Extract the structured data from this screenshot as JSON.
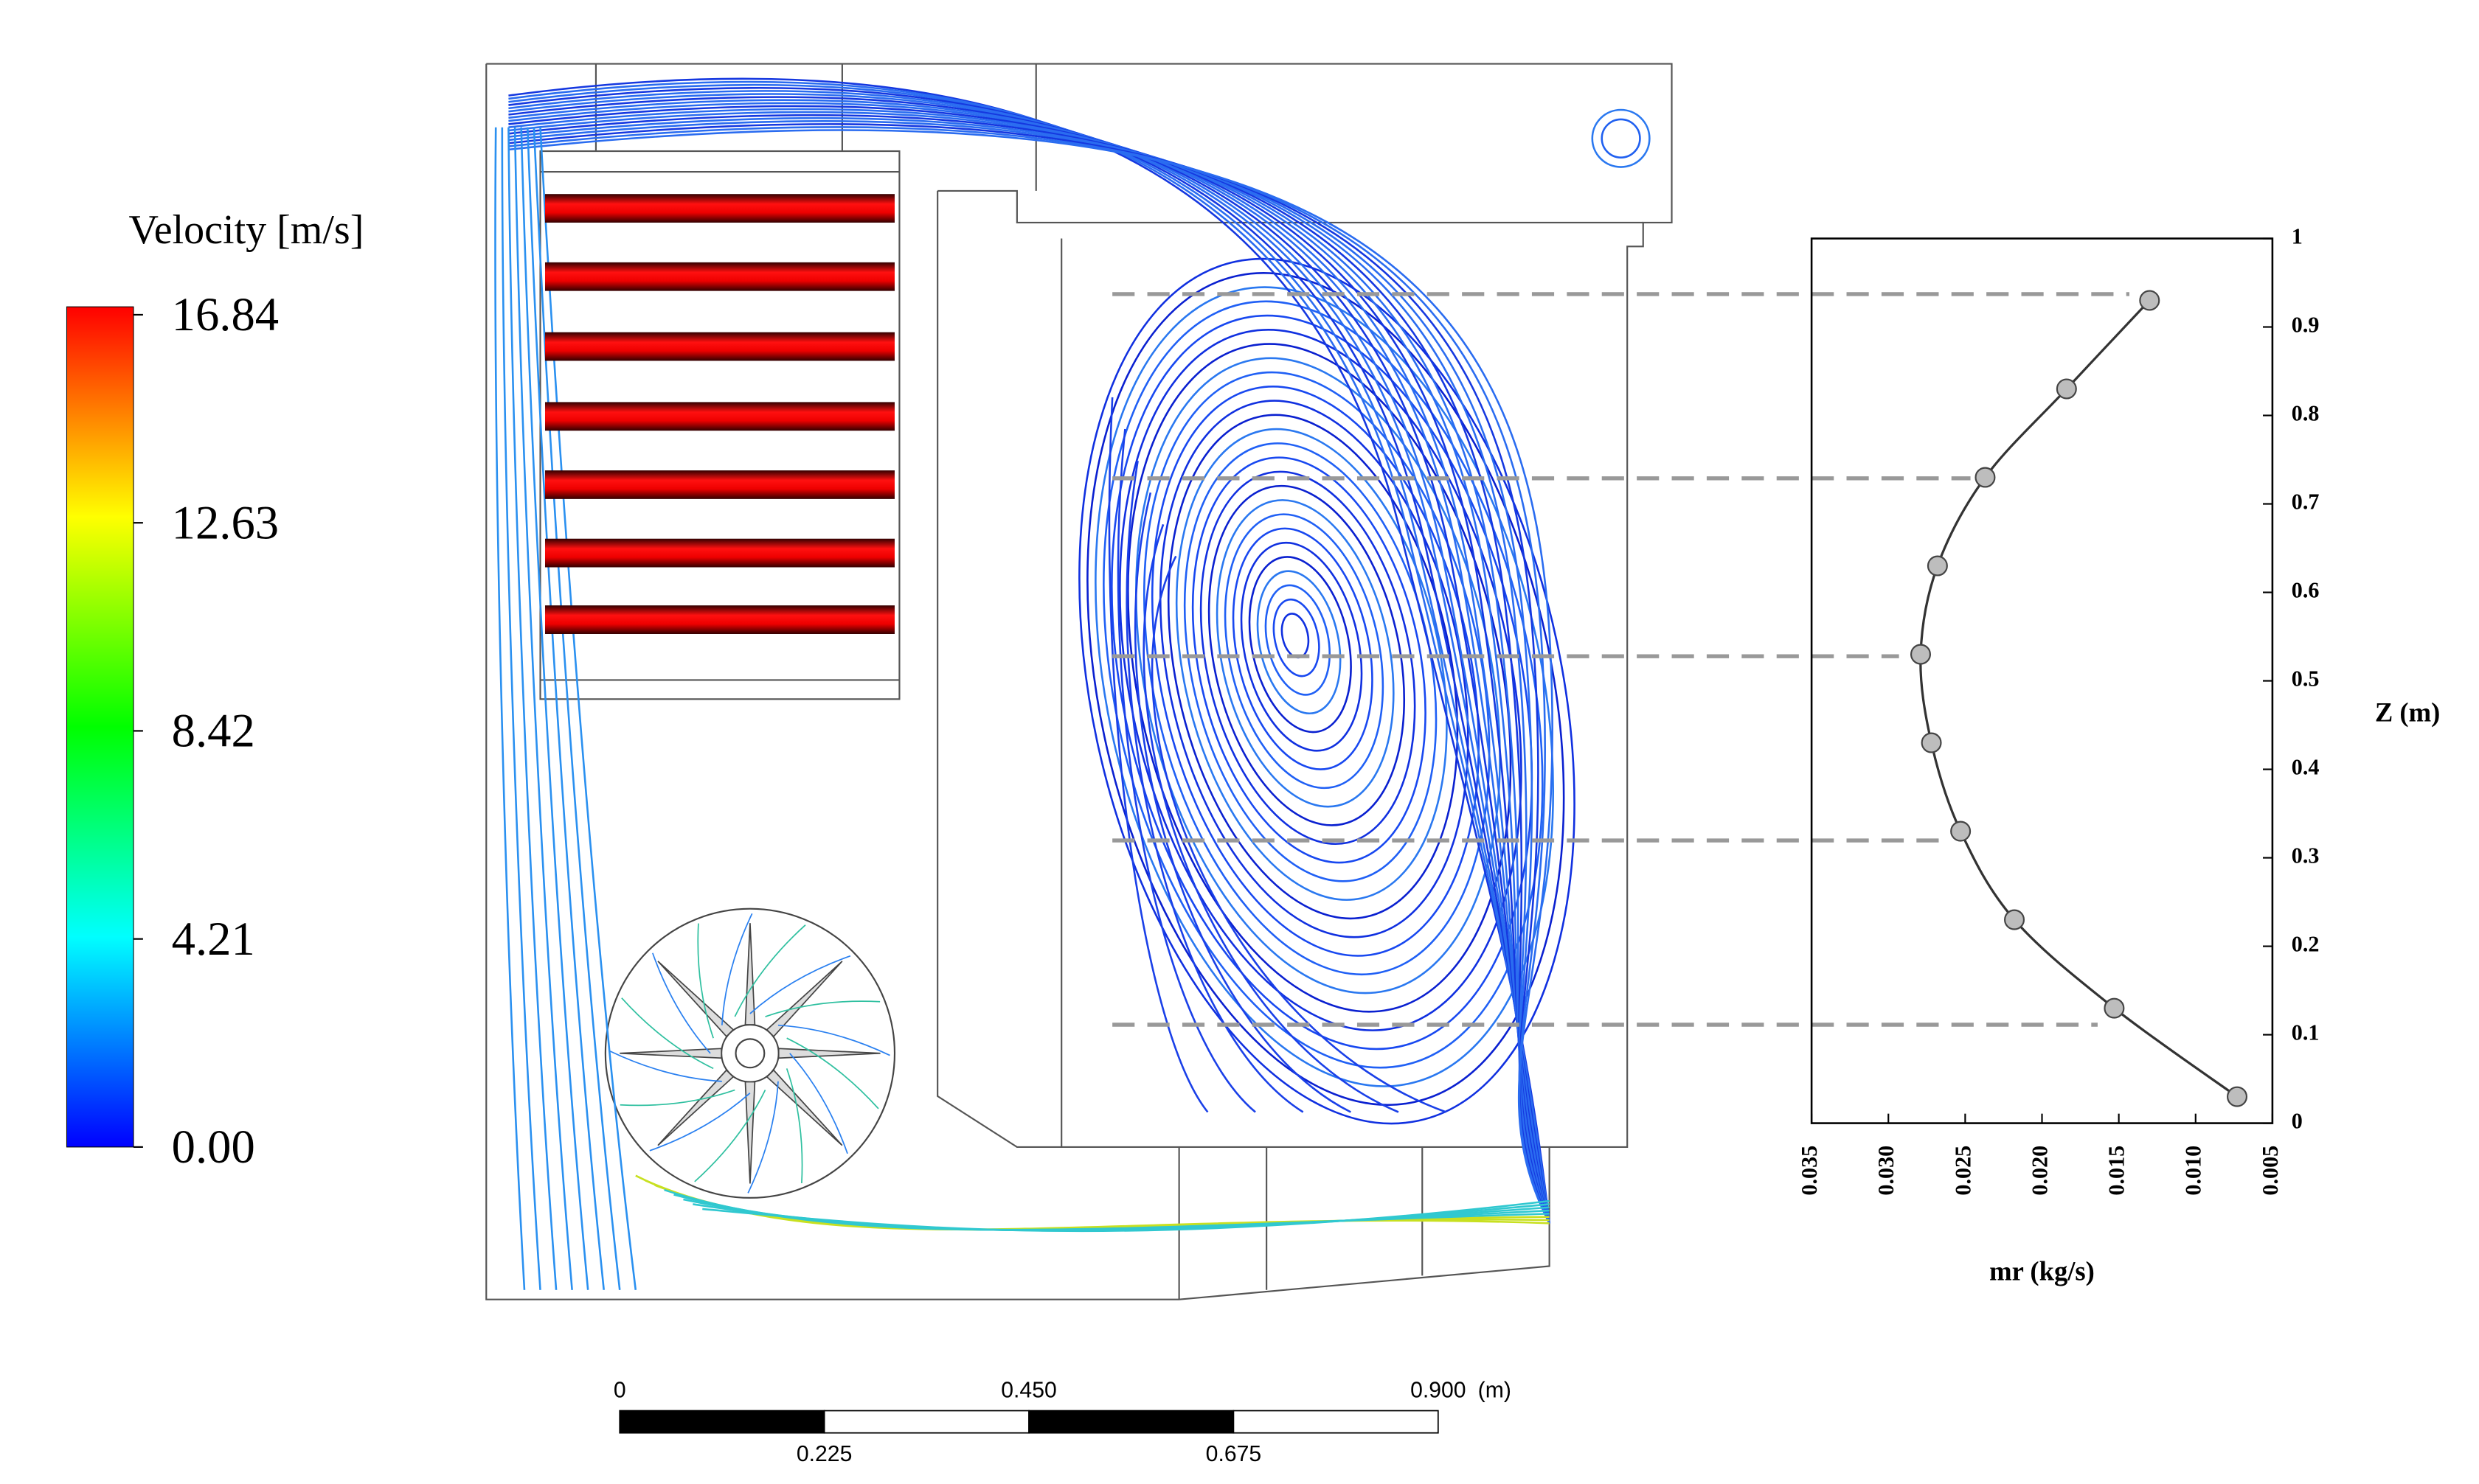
{
  "chart_data": {
    "type": "line",
    "x": [
      0.013,
      0.0184,
      0.0237,
      0.0268,
      0.0279,
      0.0272,
      0.0253,
      0.0218,
      0.0153,
      0.0073
    ],
    "values": [
      0.93,
      0.83,
      0.73,
      0.63,
      0.53,
      0.43,
      0.33,
      0.23,
      0.13,
      0.03
    ],
    "xlabel": "mr (kg/s)",
    "ylabel": "Z (m)",
    "xlim": [
      0.035,
      0.005
    ],
    "xticks": [
      0.035,
      {
        "value": 0.03,
        "label": "0.030"
      },
      0.025,
      {
        "value": 0.02,
        "label": "0.020"
      },
      0.015,
      {
        "value": 0.01,
        "label": "0.010"
      },
      0.005
    ],
    "ylim": [
      0,
      1
    ],
    "yticks": [
      0,
      0.1,
      0.2,
      0.3,
      0.4,
      0.5,
      0.6,
      0.7,
      0.8,
      0.9,
      1
    ],
    "color": "#333333",
    "marker_color": "#bdbdbd",
    "grid": false
  },
  "colorbar": {
    "title": "Velocity  [m/s]",
    "ticks": [
      16.84,
      12.63,
      8.42,
      4.21,
      {
        "value": 0,
        "label": "0.00"
      }
    ]
  },
  "scale_bar": {
    "ticks": [
      0,
      0.225,
      {
        "value": 0.45,
        "label": "0.450"
      },
      0.675,
      {
        "value": 0.9,
        "label": "0.900"
      }
    ],
    "unit": "(m)"
  }
}
